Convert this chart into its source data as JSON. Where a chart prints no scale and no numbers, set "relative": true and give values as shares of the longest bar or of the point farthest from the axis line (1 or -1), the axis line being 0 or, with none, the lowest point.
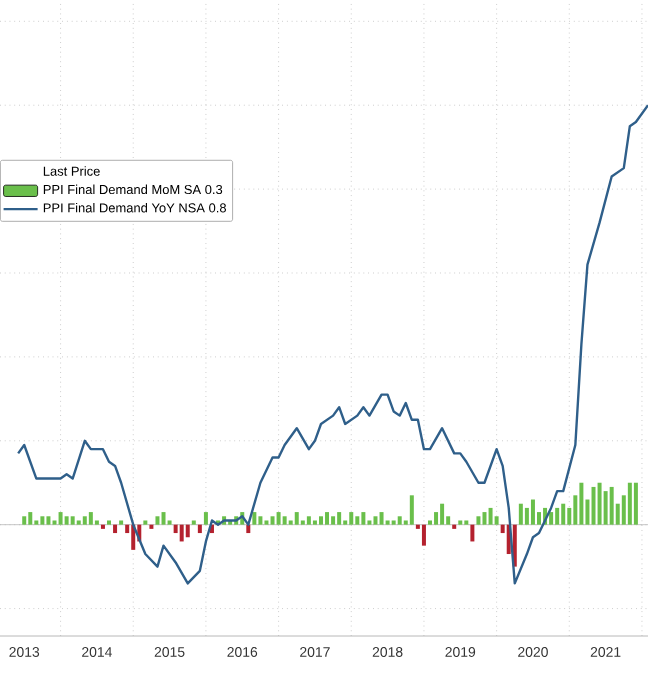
{
  "chart_data": {
    "type": "bar",
    "relative": true,
    "legend_title": "Last Price",
    "legend": "left",
    "grid": true,
    "xlim": [
      "2013-03",
      "2022-02"
    ],
    "xticks": [
      {
        "value": "2013-07",
        "label": "2013"
      },
      {
        "value": "2014-07",
        "label": "2014"
      },
      {
        "value": "2015-07",
        "label": "2015"
      },
      {
        "value": "2016-07",
        "label": "2016"
      },
      {
        "value": "2017-07",
        "label": "2017"
      },
      {
        "value": "2018-07",
        "label": "2018"
      },
      {
        "value": "2019-07",
        "label": "2019"
      },
      {
        "value": "2020-07",
        "label": "2020"
      },
      {
        "value": "2021-07",
        "label": "2021"
      },
      {
        "value": "2014",
        "label": null
      },
      {
        "value": "2015",
        "label": null
      },
      {
        "value": "2016",
        "label": null
      },
      {
        "value": "2017",
        "label": null
      },
      {
        "value": "2018",
        "label": null
      },
      {
        "value": "2019",
        "label": null
      },
      {
        "value": "2020",
        "label": null
      },
      {
        "value": "2021",
        "label": null
      },
      {
        "value": "2022",
        "label": null
      }
    ],
    "series": [
      {
        "name": "PPI Final Demand MoM SA  0.3",
        "color": "#6abf4b",
        "x": [
          "2013-07",
          "2013-08",
          "2013-09",
          "2013-10",
          "2013-11",
          "2013-12",
          "2014-01",
          "2014-02",
          "2014-03",
          "2014-04",
          "2014-05",
          "2014-06",
          "2014-07",
          "2014-08",
          "2014-09",
          "2014-10",
          "2014-11",
          "2014-12",
          "2015-01",
          "2015-02",
          "2015-03",
          "2015-04",
          "2015-05",
          "2015-06",
          "2015-07",
          "2015-08",
          "2015-09",
          "2015-10",
          "2015-11",
          "2015-12",
          "2016-01",
          "2016-02",
          "2016-03",
          "2016-04",
          "2016-05",
          "2016-06",
          "2016-07",
          "2016-08",
          "2016-09",
          "2016-10",
          "2016-11",
          "2016-12",
          "2017-01",
          "2017-02",
          "2017-03",
          "2017-04",
          "2017-05",
          "2017-06",
          "2017-07",
          "2017-08",
          "2017-09",
          "2017-10",
          "2017-11",
          "2017-12",
          "2018-01",
          "2018-02",
          "2018-03",
          "2018-04",
          "2018-05",
          "2018-06",
          "2018-07",
          "2018-08",
          "2018-09",
          "2018-10",
          "2018-11",
          "2018-12",
          "2019-01",
          "2019-02",
          "2019-03",
          "2019-04",
          "2019-05",
          "2019-06",
          "2019-07",
          "2019-08",
          "2019-09",
          "2019-10",
          "2019-11",
          "2019-12",
          "2020-01",
          "2020-02",
          "2020-03",
          "2020-04",
          "2020-05",
          "2020-06",
          "2020-07",
          "2020-08",
          "2020-09",
          "2020-10",
          "2020-11",
          "2020-12",
          "2021-01",
          "2021-02",
          "2021-03",
          "2021-04",
          "2021-05",
          "2021-06",
          "2021-07",
          "2021-08",
          "2021-09",
          "2021-10",
          "2021-11",
          "2021-12"
        ],
        "values": [
          0.02,
          0.03,
          0.01,
          0.02,
          0.02,
          0.01,
          0.03,
          0.02,
          0.02,
          0.01,
          0.02,
          0.03,
          0.01,
          -0.01,
          0.01,
          -0.02,
          0.01,
          -0.02,
          -0.06,
          -0.04,
          0.01,
          -0.01,
          0.02,
          0.03,
          0.01,
          -0.02,
          -0.04,
          -0.03,
          0.01,
          -0.02,
          0.03,
          -0.02,
          0.01,
          0.02,
          0.01,
          0.02,
          0.03,
          -0.02,
          0.03,
          0.02,
          0.01,
          0.02,
          0.03,
          0.02,
          0.01,
          0.03,
          0.01,
          0.02,
          0.01,
          0.02,
          0.03,
          0.02,
          0.03,
          0.01,
          0.03,
          0.02,
          0.03,
          0.01,
          0.02,
          0.03,
          0.01,
          0.01,
          0.02,
          0.01,
          0.07,
          -0.01,
          -0.05,
          0.01,
          0.03,
          0.05,
          0.02,
          -0.01,
          0.01,
          0.01,
          -0.04,
          0.02,
          0.03,
          0.04,
          0.02,
          -0.02,
          -0.07,
          -0.1,
          0.05,
          0.04,
          0.06,
          0.03,
          0.04,
          0.03,
          0.04,
          0.05,
          0.04,
          0.07,
          0.1,
          0.06,
          0.09,
          0.1,
          0.08,
          0.09,
          0.05,
          0.07,
          0.1,
          0.1
        ],
        "colors": [
          "#6abf4b",
          "#6abf4b",
          "#6abf4b",
          "#6abf4b",
          "#6abf4b",
          "#6abf4b",
          "#6abf4b",
          "#6abf4b",
          "#6abf4b",
          "#6abf4b",
          "#6abf4b",
          "#6abf4b",
          "#6abf4b",
          "#b4212e",
          "#6abf4b",
          "#b4212e",
          "#6abf4b",
          "#b4212e",
          "#b4212e",
          "#b4212e",
          "#6abf4b",
          "#b4212e",
          "#6abf4b",
          "#6abf4b",
          "#6abf4b",
          "#b4212e",
          "#b4212e",
          "#b4212e",
          "#6abf4b",
          "#b4212e",
          "#6abf4b",
          "#b4212e",
          "#6abf4b",
          "#6abf4b",
          "#6abf4b",
          "#6abf4b",
          "#6abf4b",
          "#b4212e",
          "#6abf4b",
          "#6abf4b",
          "#6abf4b",
          "#6abf4b",
          "#6abf4b",
          "#6abf4b",
          "#6abf4b",
          "#6abf4b",
          "#6abf4b",
          "#6abf4b",
          "#6abf4b",
          "#6abf4b",
          "#6abf4b",
          "#6abf4b",
          "#6abf4b",
          "#6abf4b",
          "#6abf4b",
          "#6abf4b",
          "#6abf4b",
          "#6abf4b",
          "#6abf4b",
          "#6abf4b",
          "#6abf4b",
          "#6abf4b",
          "#6abf4b",
          "#6abf4b",
          "#6abf4b",
          "#b4212e",
          "#b4212e",
          "#6abf4b",
          "#6abf4b",
          "#6abf4b",
          "#6abf4b",
          "#b4212e",
          "#6abf4b",
          "#6abf4b",
          "#b4212e",
          "#6abf4b",
          "#6abf4b",
          "#6abf4b",
          "#6abf4b",
          "#b4212e",
          "#b4212e",
          "#b4212e",
          "#6abf4b",
          "#6abf4b",
          "#6abf4b",
          "#6abf4b",
          "#6abf4b",
          "#6abf4b",
          "#6abf4b",
          "#6abf4b",
          "#6abf4b",
          "#6abf4b",
          "#6abf4b",
          "#6abf4b",
          "#6abf4b",
          "#6abf4b",
          "#6abf4b",
          "#6abf4b",
          "#6abf4b",
          "#6abf4b",
          "#6abf4b",
          "#6abf4b"
        ]
      },
      {
        "name": "PPI Final Demand YoY NSA 0.8",
        "type": "line",
        "color": "#2f5f8a",
        "x": [
          "2013-06",
          "2013-07",
          "2013-09",
          "2013-11",
          "2014-01",
          "2014-02",
          "2014-03",
          "2014-05",
          "2014-06",
          "2014-08",
          "2014-09",
          "2014-10",
          "2014-11",
          "2015-01",
          "2015-03",
          "2015-05",
          "2015-06",
          "2015-08",
          "2015-10",
          "2015-12",
          "2016-01",
          "2016-02",
          "2016-03",
          "2016-04",
          "2016-06",
          "2016-07",
          "2016-08",
          "2016-10",
          "2016-12",
          "2017-01",
          "2017-02",
          "2017-04",
          "2017-06",
          "2017-07",
          "2017-08",
          "2017-10",
          "2017-11",
          "2017-12",
          "2018-02",
          "2018-03",
          "2018-04",
          "2018-06",
          "2018-07",
          "2018-08",
          "2018-09",
          "2018-10",
          "2018-11",
          "2018-12",
          "2019-01",
          "2019-02",
          "2019-04",
          "2019-06",
          "2019-07",
          "2019-08",
          "2019-10",
          "2019-11",
          "2020-01",
          "2020-02",
          "2020-03",
          "2020-04",
          "2020-06",
          "2020-07",
          "2020-08",
          "2020-10",
          "2020-11",
          "2020-12",
          "2021-02",
          "2021-03",
          "2021-04",
          "2021-05",
          "2021-06",
          "2021-08",
          "2021-10",
          "2021-11",
          "2021-12",
          "2022-02"
        ],
        "values": [
          0.17,
          0.19,
          0.11,
          0.11,
          0.11,
          0.12,
          0.11,
          0.2,
          0.18,
          0.18,
          0.15,
          0.14,
          0.1,
          0.0,
          -0.07,
          -0.1,
          -0.05,
          -0.09,
          -0.14,
          -0.11,
          -0.04,
          0.01,
          0.0,
          0.01,
          0.01,
          0.02,
          0.0,
          0.1,
          0.16,
          0.16,
          0.19,
          0.23,
          0.18,
          0.2,
          0.24,
          0.26,
          0.28,
          0.24,
          0.26,
          0.28,
          0.26,
          0.31,
          0.31,
          0.27,
          0.26,
          0.29,
          0.25,
          0.25,
          0.18,
          0.18,
          0.23,
          0.17,
          0.17,
          0.15,
          0.1,
          0.1,
          0.18,
          0.14,
          0.04,
          -0.14,
          -0.07,
          -0.03,
          -0.02,
          0.04,
          0.08,
          0.08,
          0.19,
          0.43,
          0.62,
          0.67,
          0.72,
          0.83,
          0.85,
          0.95,
          0.96,
          1.0
        ]
      }
    ]
  }
}
